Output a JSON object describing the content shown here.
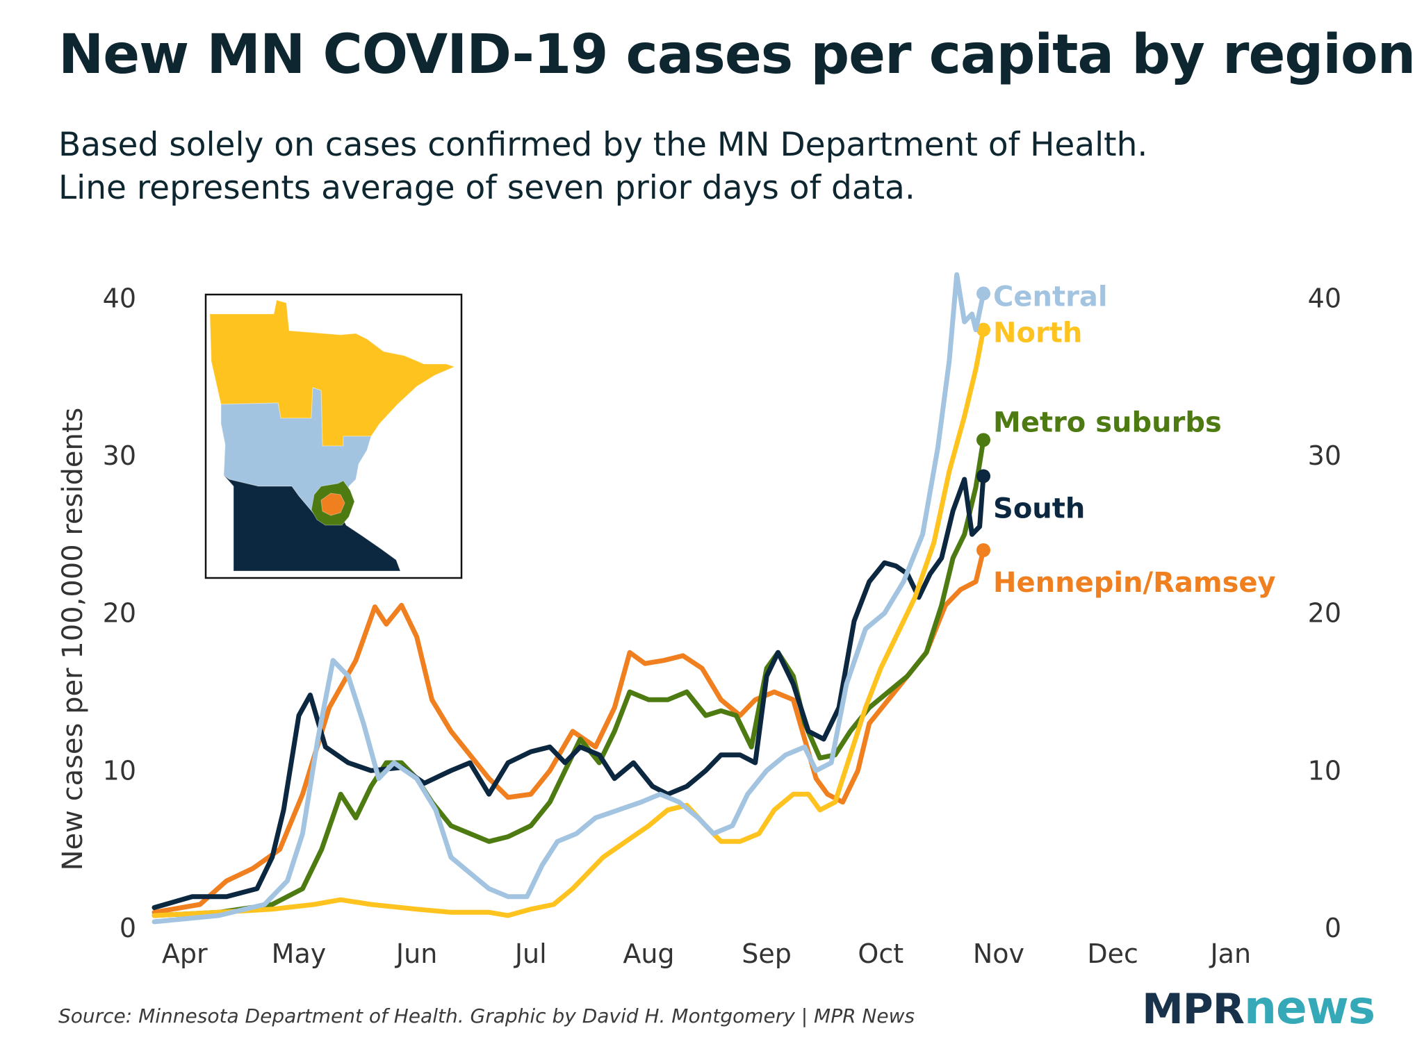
{
  "title": "New MN COVID-19 cases per capita by region",
  "subtitle_line1": "Based solely on cases confirmed by the MN Department of Health.",
  "subtitle_line2": "Line represents average of seven prior days of data.",
  "source": "Source: Minnesota Department of Health. Graphic by David H. Montgomery | MPR News",
  "logo": {
    "mpr": "MPR",
    "news": "news"
  },
  "chart_data": {
    "type": "line",
    "title": "New MN COVID-19 cases per capita by region",
    "ylabel": "New cases per 100,000 residents",
    "xlabel": "",
    "ylim": [
      0,
      42
    ],
    "xlim": [
      "2020-03-24",
      "2021-01-10"
    ],
    "yticks": [
      0,
      10,
      20,
      30,
      40
    ],
    "xticks": [
      {
        "label": "Apr",
        "date": "2020-04-01"
      },
      {
        "label": "May",
        "date": "2020-05-01"
      },
      {
        "label": "Jun",
        "date": "2020-06-01"
      },
      {
        "label": "Jul",
        "date": "2020-07-01"
      },
      {
        "label": "Aug",
        "date": "2020-08-01"
      },
      {
        "label": "Sep",
        "date": "2020-09-01"
      },
      {
        "label": "Oct",
        "date": "2020-10-01"
      },
      {
        "label": "Nov",
        "date": "2020-11-01"
      },
      {
        "label": "Dec",
        "date": "2020-12-01"
      },
      {
        "label": "Jan",
        "date": "2021-01-01"
      }
    ],
    "grid": false,
    "legend": "direct labels at line ends",
    "series": [
      {
        "name": "Hennepin/Ramsey",
        "color": "#f07f1f",
        "points": [
          [
            "2020-03-24",
            1.0
          ],
          [
            "2020-04-05",
            1.5
          ],
          [
            "2020-04-12",
            3.0
          ],
          [
            "2020-04-19",
            3.8
          ],
          [
            "2020-04-26",
            5.0
          ],
          [
            "2020-05-02",
            8.5
          ],
          [
            "2020-05-09",
            14.0
          ],
          [
            "2020-05-16",
            17.0
          ],
          [
            "2020-05-21",
            20.4
          ],
          [
            "2020-05-24",
            19.3
          ],
          [
            "2020-05-28",
            20.5
          ],
          [
            "2020-06-01",
            18.5
          ],
          [
            "2020-06-05",
            14.5
          ],
          [
            "2020-06-10",
            12.5
          ],
          [
            "2020-06-15",
            11.0
          ],
          [
            "2020-06-20",
            9.5
          ],
          [
            "2020-06-25",
            8.3
          ],
          [
            "2020-07-01",
            8.5
          ],
          [
            "2020-07-06",
            10.0
          ],
          [
            "2020-07-12",
            12.5
          ],
          [
            "2020-07-18",
            11.5
          ],
          [
            "2020-07-23",
            14.0
          ],
          [
            "2020-07-27",
            17.5
          ],
          [
            "2020-07-31",
            16.8
          ],
          [
            "2020-08-05",
            17.0
          ],
          [
            "2020-08-10",
            17.3
          ],
          [
            "2020-08-15",
            16.5
          ],
          [
            "2020-08-20",
            14.5
          ],
          [
            "2020-08-25",
            13.5
          ],
          [
            "2020-08-29",
            14.5
          ],
          [
            "2020-09-03",
            15.0
          ],
          [
            "2020-09-08",
            14.5
          ],
          [
            "2020-09-11",
            12.0
          ],
          [
            "2020-09-14",
            9.5
          ],
          [
            "2020-09-17",
            8.5
          ],
          [
            "2020-09-21",
            8.0
          ],
          [
            "2020-09-25",
            10.0
          ],
          [
            "2020-09-28",
            13.0
          ],
          [
            "2020-10-03",
            14.5
          ],
          [
            "2020-10-08",
            16.0
          ],
          [
            "2020-10-13",
            17.5
          ],
          [
            "2020-10-18",
            20.5
          ],
          [
            "2020-10-22",
            21.5
          ],
          [
            "2020-10-26",
            22.0
          ],
          [
            "2020-10-28",
            24.0
          ]
        ]
      },
      {
        "name": "Metro suburbs",
        "color": "#4e7a12",
        "points": [
          [
            "2020-03-24",
            0.8
          ],
          [
            "2020-04-10",
            1.0
          ],
          [
            "2020-04-24",
            1.5
          ],
          [
            "2020-05-02",
            2.5
          ],
          [
            "2020-05-07",
            5.0
          ],
          [
            "2020-05-12",
            8.5
          ],
          [
            "2020-05-16",
            7.0
          ],
          [
            "2020-05-20",
            9.0
          ],
          [
            "2020-05-24",
            10.5
          ],
          [
            "2020-05-28",
            10.5
          ],
          [
            "2020-06-01",
            9.5
          ],
          [
            "2020-06-05",
            8.0
          ],
          [
            "2020-06-10",
            6.5
          ],
          [
            "2020-06-15",
            6.0
          ],
          [
            "2020-06-20",
            5.5
          ],
          [
            "2020-06-25",
            5.8
          ],
          [
            "2020-07-01",
            6.5
          ],
          [
            "2020-07-06",
            8.0
          ],
          [
            "2020-07-10",
            10.0
          ],
          [
            "2020-07-14",
            12.0
          ],
          [
            "2020-07-19",
            10.5
          ],
          [
            "2020-07-23",
            12.5
          ],
          [
            "2020-07-27",
            15.0
          ],
          [
            "2020-08-01",
            14.5
          ],
          [
            "2020-08-06",
            14.5
          ],
          [
            "2020-08-11",
            15.0
          ],
          [
            "2020-08-16",
            13.5
          ],
          [
            "2020-08-20",
            13.8
          ],
          [
            "2020-08-24",
            13.5
          ],
          [
            "2020-08-28",
            11.5
          ],
          [
            "2020-09-01",
            16.5
          ],
          [
            "2020-09-04",
            17.5
          ],
          [
            "2020-09-08",
            16.0
          ],
          [
            "2020-09-11",
            13.0
          ],
          [
            "2020-09-15",
            10.8
          ],
          [
            "2020-09-19",
            11.0
          ],
          [
            "2020-09-23",
            12.5
          ],
          [
            "2020-09-28",
            14.0
          ],
          [
            "2020-10-03",
            15.0
          ],
          [
            "2020-10-08",
            16.0
          ],
          [
            "2020-10-13",
            17.5
          ],
          [
            "2020-10-17",
            20.5
          ],
          [
            "2020-10-20",
            23.5
          ],
          [
            "2020-10-23",
            25.0
          ],
          [
            "2020-10-26",
            28.0
          ],
          [
            "2020-10-28",
            31.0
          ]
        ]
      },
      {
        "name": "South",
        "color": "#0c2740",
        "points": [
          [
            "2020-03-24",
            1.3
          ],
          [
            "2020-04-03",
            2.0
          ],
          [
            "2020-04-12",
            2.0
          ],
          [
            "2020-04-20",
            2.5
          ],
          [
            "2020-04-24",
            4.5
          ],
          [
            "2020-04-27",
            7.5
          ],
          [
            "2020-05-01",
            13.5
          ],
          [
            "2020-05-04",
            14.8
          ],
          [
            "2020-05-08",
            11.5
          ],
          [
            "2020-05-14",
            10.5
          ],
          [
            "2020-05-20",
            10.0
          ],
          [
            "2020-05-28",
            10.2
          ],
          [
            "2020-06-03",
            9.2
          ],
          [
            "2020-06-10",
            10.0
          ],
          [
            "2020-06-15",
            10.5
          ],
          [
            "2020-06-20",
            8.5
          ],
          [
            "2020-06-25",
            10.5
          ],
          [
            "2020-07-01",
            11.2
          ],
          [
            "2020-07-06",
            11.5
          ],
          [
            "2020-07-10",
            10.5
          ],
          [
            "2020-07-14",
            11.5
          ],
          [
            "2020-07-19",
            11.0
          ],
          [
            "2020-07-23",
            9.5
          ],
          [
            "2020-07-28",
            10.5
          ],
          [
            "2020-08-02",
            9.0
          ],
          [
            "2020-08-06",
            8.5
          ],
          [
            "2020-08-11",
            9.0
          ],
          [
            "2020-08-16",
            10.0
          ],
          [
            "2020-08-20",
            11.0
          ],
          [
            "2020-08-25",
            11.0
          ],
          [
            "2020-08-29",
            10.5
          ],
          [
            "2020-09-01",
            16.0
          ],
          [
            "2020-09-04",
            17.5
          ],
          [
            "2020-09-08",
            15.5
          ],
          [
            "2020-09-12",
            12.5
          ],
          [
            "2020-09-16",
            12.0
          ],
          [
            "2020-09-20",
            14.0
          ],
          [
            "2020-09-24",
            19.5
          ],
          [
            "2020-09-28",
            22.0
          ],
          [
            "2020-10-02",
            23.2
          ],
          [
            "2020-10-05",
            23.0
          ],
          [
            "2020-10-08",
            22.5
          ],
          [
            "2020-10-11",
            21.0
          ],
          [
            "2020-10-14",
            22.5
          ],
          [
            "2020-10-17",
            23.5
          ],
          [
            "2020-10-20",
            26.5
          ],
          [
            "2020-10-23",
            28.5
          ],
          [
            "2020-10-25",
            25.0
          ],
          [
            "2020-10-27",
            25.5
          ],
          [
            "2020-10-28",
            28.7
          ]
        ]
      },
      {
        "name": "North",
        "color": "#ffc320",
        "points": [
          [
            "2020-03-24",
            0.8
          ],
          [
            "2020-04-10",
            1.0
          ],
          [
            "2020-04-24",
            1.2
          ],
          [
            "2020-05-05",
            1.5
          ],
          [
            "2020-05-12",
            1.8
          ],
          [
            "2020-05-20",
            1.5
          ],
          [
            "2020-06-01",
            1.2
          ],
          [
            "2020-06-10",
            1.0
          ],
          [
            "2020-06-20",
            1.0
          ],
          [
            "2020-06-25",
            0.8
          ],
          [
            "2020-07-01",
            1.2
          ],
          [
            "2020-07-07",
            1.5
          ],
          [
            "2020-07-12",
            2.5
          ],
          [
            "2020-07-16",
            3.5
          ],
          [
            "2020-07-20",
            4.5
          ],
          [
            "2020-07-26",
            5.5
          ],
          [
            "2020-08-01",
            6.5
          ],
          [
            "2020-08-06",
            7.5
          ],
          [
            "2020-08-11",
            7.8
          ],
          [
            "2020-08-16",
            6.5
          ],
          [
            "2020-08-20",
            5.5
          ],
          [
            "2020-08-25",
            5.5
          ],
          [
            "2020-08-30",
            6.0
          ],
          [
            "2020-09-03",
            7.5
          ],
          [
            "2020-09-08",
            8.5
          ],
          [
            "2020-09-12",
            8.5
          ],
          [
            "2020-09-15",
            7.5
          ],
          [
            "2020-09-19",
            8.0
          ],
          [
            "2020-09-23",
            11.0
          ],
          [
            "2020-09-27",
            14.0
          ],
          [
            "2020-10-01",
            16.5
          ],
          [
            "2020-10-05",
            18.5
          ],
          [
            "2020-10-10",
            21.0
          ],
          [
            "2020-10-15",
            24.5
          ],
          [
            "2020-10-19",
            29.0
          ],
          [
            "2020-10-23",
            32.5
          ],
          [
            "2020-10-26",
            35.5
          ],
          [
            "2020-10-28",
            38.0
          ]
        ]
      },
      {
        "name": "Central",
        "color": "#a3c4e0",
        "points": [
          [
            "2020-03-24",
            0.4
          ],
          [
            "2020-04-10",
            0.8
          ],
          [
            "2020-04-22",
            1.5
          ],
          [
            "2020-04-28",
            3.0
          ],
          [
            "2020-05-02",
            6.0
          ],
          [
            "2020-05-06",
            12.0
          ],
          [
            "2020-05-10",
            17.0
          ],
          [
            "2020-05-14",
            16.0
          ],
          [
            "2020-05-18",
            13.0
          ],
          [
            "2020-05-22",
            9.5
          ],
          [
            "2020-05-26",
            10.5
          ],
          [
            "2020-06-01",
            9.5
          ],
          [
            "2020-06-06",
            7.5
          ],
          [
            "2020-06-10",
            4.5
          ],
          [
            "2020-06-15",
            3.5
          ],
          [
            "2020-06-20",
            2.5
          ],
          [
            "2020-06-25",
            2.0
          ],
          [
            "2020-06-30",
            2.0
          ],
          [
            "2020-07-04",
            4.0
          ],
          [
            "2020-07-08",
            5.5
          ],
          [
            "2020-07-13",
            6.0
          ],
          [
            "2020-07-18",
            7.0
          ],
          [
            "2020-07-24",
            7.5
          ],
          [
            "2020-07-30",
            8.0
          ],
          [
            "2020-08-04",
            8.5
          ],
          [
            "2020-08-09",
            8.0
          ],
          [
            "2020-08-14",
            7.0
          ],
          [
            "2020-08-18",
            6.0
          ],
          [
            "2020-08-23",
            6.5
          ],
          [
            "2020-08-27",
            8.5
          ],
          [
            "2020-09-01",
            10.0
          ],
          [
            "2020-09-06",
            11.0
          ],
          [
            "2020-09-11",
            11.5
          ],
          [
            "2020-09-14",
            10.0
          ],
          [
            "2020-09-18",
            10.5
          ],
          [
            "2020-09-22",
            15.5
          ],
          [
            "2020-09-27",
            19.0
          ],
          [
            "2020-10-02",
            20.0
          ],
          [
            "2020-10-07",
            22.0
          ],
          [
            "2020-10-12",
            25.0
          ],
          [
            "2020-10-16",
            30.5
          ],
          [
            "2020-10-19",
            36.0
          ],
          [
            "2020-10-21",
            41.5
          ],
          [
            "2020-10-23",
            38.5
          ],
          [
            "2020-10-25",
            39.0
          ],
          [
            "2020-10-26",
            38.0
          ],
          [
            "2020-10-28",
            40.3
          ]
        ]
      }
    ]
  },
  "inset_map": {
    "regions": [
      {
        "name": "North",
        "color": "#ffc320"
      },
      {
        "name": "Central",
        "color": "#a3c4e0"
      },
      {
        "name": "South",
        "color": "#0c2740"
      },
      {
        "name": "Metro suburbs",
        "color": "#4e7a12"
      },
      {
        "name": "Hennepin/Ramsey",
        "color": "#f07f1f"
      }
    ]
  }
}
